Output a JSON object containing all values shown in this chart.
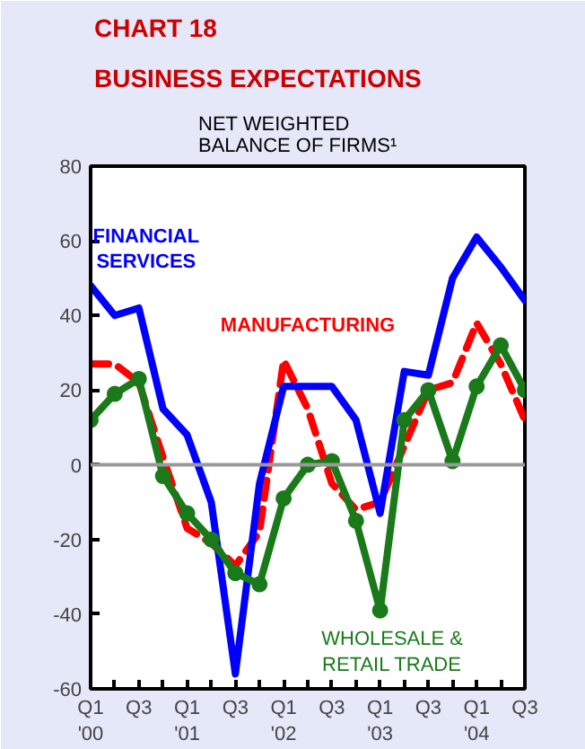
{
  "chart_data": {
    "type": "line",
    "title": "CHART 18",
    "subtitle": "BUSINESS EXPECTATIONS",
    "ylabel": "NET WEIGHTED\nBALANCE OF FIRMS¹",
    "categories": [
      "Q1\n'00",
      null,
      "Q3",
      null,
      "Q1\n'01",
      null,
      "Q3",
      null,
      "Q1\n'02",
      null,
      "Q3",
      null,
      "Q1\n'03",
      null,
      "Q3",
      null,
      "Q1\n'04",
      null,
      "Q3"
    ],
    "ylim": [
      -60,
      80
    ],
    "yticks": [
      -60,
      -40,
      -20,
      0,
      20,
      40,
      60,
      80
    ],
    "grid": false,
    "ref_lines": [
      {
        "axis": "y",
        "value": 0,
        "label": null,
        "color": "#999999"
      }
    ],
    "series": [
      {
        "name": "MANUFACTURING",
        "color": "#ff0000",
        "line_style": "dashed",
        "marker": "none",
        "values": [
          27,
          27,
          22,
          2,
          -17,
          -21,
          -27,
          -18,
          28,
          15,
          -5,
          -12,
          -10,
          5,
          20,
          22,
          38,
          27,
          12
        ]
      },
      {
        "name": "FINANCIAL SERVICES",
        "color": "#0000ff",
        "line_style": "solid",
        "marker": "none",
        "values": [
          48,
          40,
          42,
          15,
          8,
          -10,
          -56,
          -5,
          21,
          21,
          21,
          12,
          -13,
          25,
          24,
          50,
          61,
          53,
          44
        ]
      },
      {
        "name": "WHOLESALE & RETAIL TRADE",
        "color": "#1a7a1a",
        "line_style": "solid",
        "marker": "circle",
        "values": [
          12,
          19,
          23,
          -3,
          -13,
          -20,
          -29,
          -32,
          -9,
          0,
          1,
          -15,
          -39,
          12,
          20,
          1,
          21,
          32,
          20
        ]
      }
    ]
  }
}
